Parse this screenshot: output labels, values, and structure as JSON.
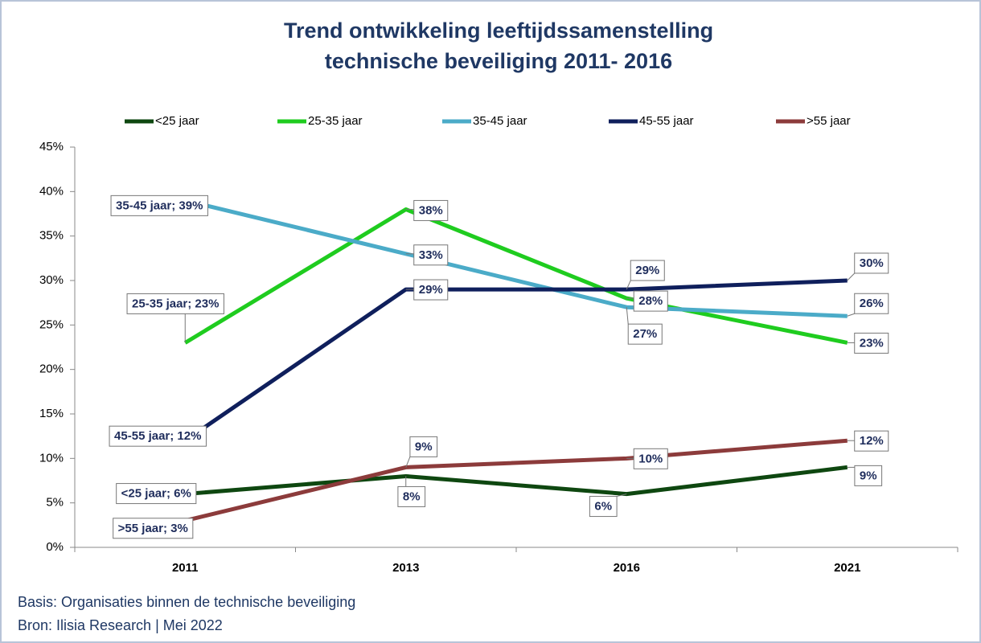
{
  "chart_data": {
    "type": "line",
    "title": [
      "Trend ontwikkeling leeftijdssamenstelling",
      "technische beveiliging 2011- 2016"
    ],
    "categories": [
      "2011",
      "2013",
      "2016",
      "2021"
    ],
    "series": [
      {
        "name": "<25 jaar",
        "color": "#0e4710",
        "values": [
          6,
          8,
          6,
          9
        ],
        "value_labels": [
          "<25 jaar; 6%",
          "8%",
          "6%",
          "9%"
        ]
      },
      {
        "name": "25-35 jaar",
        "color": "#1fcc1f",
        "values": [
          23,
          38,
          28,
          23
        ],
        "value_labels": [
          "25-35 jaar; 23%",
          "38%",
          "28%",
          "23%"
        ]
      },
      {
        "name": "35-45 jaar",
        "color": "#4babc8",
        "values": [
          39,
          33,
          27,
          26
        ],
        "value_labels": [
          "35-45 jaar; 39%",
          "33%",
          "27%",
          "26%"
        ]
      },
      {
        "name": "45-55 jaar",
        "color": "#0f1f5c",
        "values": [
          12,
          29,
          29,
          30
        ],
        "value_labels": [
          "45-55 jaar; 12%",
          "29%",
          "29%",
          "30%"
        ]
      },
      {
        "name": ">55 jaar",
        "color": "#8c3b3b",
        "values": [
          3,
          9,
          10,
          12
        ],
        "value_labels": [
          ">55 jaar; 3%",
          "9%",
          "10%",
          "12%"
        ]
      }
    ],
    "ylim": [
      0,
      45
    ],
    "yticks": [
      {
        "value": 0,
        "label": "0%"
      },
      {
        "value": 5,
        "label": "5%"
      },
      {
        "value": 10,
        "label": "10%"
      },
      {
        "value": 15,
        "label": "15%"
      },
      {
        "value": 20,
        "label": "20%"
      },
      {
        "value": 25,
        "label": "25%"
      },
      {
        "value": 30,
        "label": "30%"
      },
      {
        "value": 35,
        "label": "35%"
      },
      {
        "value": 40,
        "label": "40%"
      },
      {
        "value": 45,
        "label": "45%"
      }
    ],
    "legend": "top",
    "notes": [
      "Basis: Organisaties binnen de technische beveiliging",
      "Bron: Ilisia Research  | Mei 2022"
    ]
  }
}
